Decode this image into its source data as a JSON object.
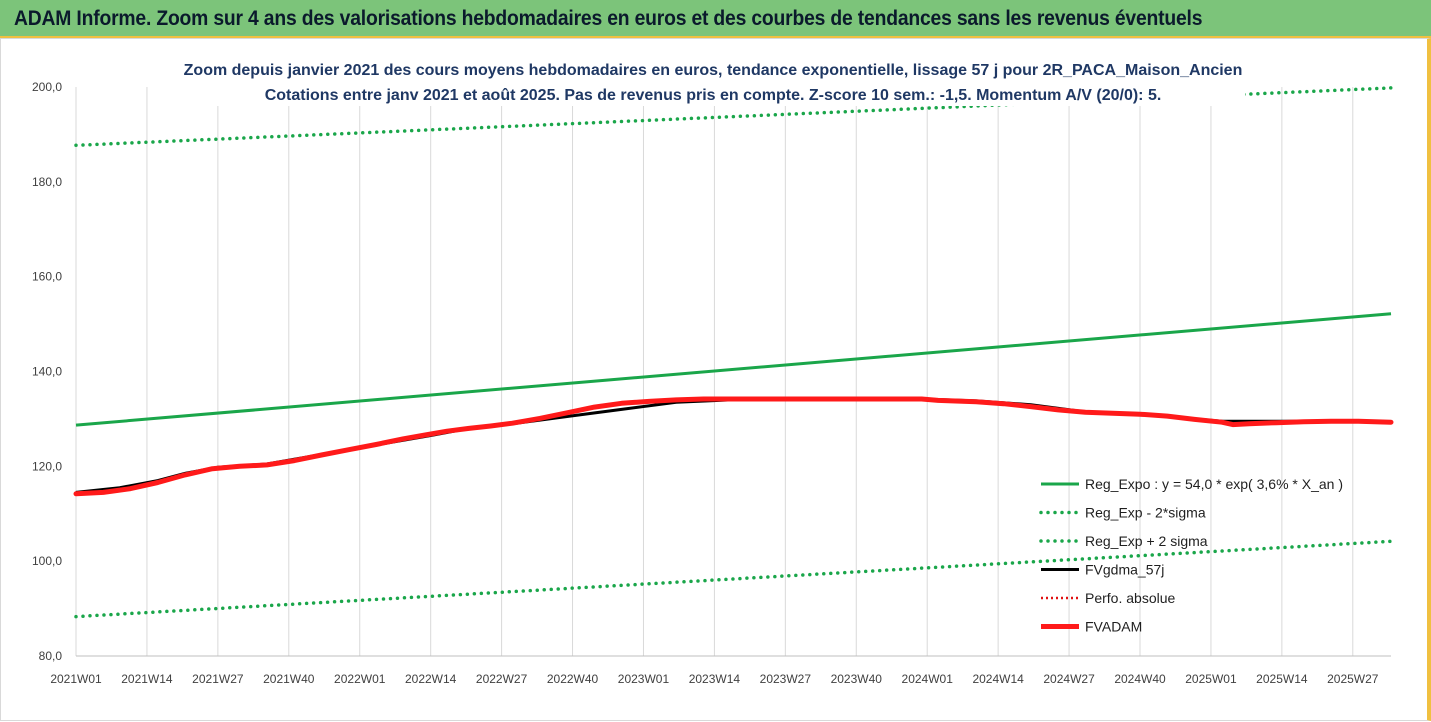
{
  "banner": {
    "text": "ADAM Informe. Zoom sur 4 ans des valorisations hebdomadaires en euros et des courbes de tendances sans les revenus éventuels"
  },
  "colors": {
    "banner_bg": "#7cc47a",
    "trend": "#1aa64a",
    "bands": "#1aa64a",
    "fvgdma": "#000000",
    "perfo": "#e01010",
    "fvadam": "#ff1a1a",
    "accent_border": "#f0c040"
  },
  "chart_data": {
    "type": "line",
    "title": "Zoom depuis janvier 2021 des cours moyens hebdomadaires en euros, tendance exponentielle, lissage 57 j pour 2R_PACA_Maison_Ancien",
    "subtitle": "Cotations entre janv 2021 et août 2025. Pas de revenus pris en compte. Z-score 10 sem.: -1,5. Momentum A/V (20/0): 5.",
    "xlabel": "",
    "ylabel": "",
    "ylim": [
      80,
      200
    ],
    "grid": "vertical",
    "legend_position": "bottom-right",
    "x_ticks": [
      "2021W01",
      "2021W14",
      "2021W27",
      "2021W40",
      "2022W01",
      "2022W14",
      "2022W27",
      "2022W40",
      "2023W01",
      "2023W14",
      "2023W27",
      "2023W40",
      "2024W01",
      "2024W14",
      "2024W27",
      "2024W40",
      "2025W01",
      "2025W14",
      "2025W27"
    ],
    "y_ticks": [
      "80,0",
      "100,0",
      "120,0",
      "140,0",
      "160,0",
      "180,0",
      "200,0"
    ],
    "x_range_weeks": [
      0,
      241
    ],
    "series": [
      {
        "name": "Reg_Expo : y = 54,0 * exp( 3,6% *  X_an )",
        "style": "solid-green",
        "points": [
          [
            0,
            128.7
          ],
          [
            241,
            152.2
          ]
        ]
      },
      {
        "name": "Reg_Exp - 2*sigma",
        "style": "dotted-green",
        "points": [
          [
            0,
            88.3
          ],
          [
            241,
            104.2
          ]
        ]
      },
      {
        "name": "Reg_Exp + 2 sigma",
        "style": "dotted-green",
        "points": [
          [
            0,
            187.7
          ],
          [
            241,
            199.8
          ]
        ]
      },
      {
        "name": "FVgdma_57j",
        "style": "solid-black",
        "points": [
          [
            0,
            114.5
          ],
          [
            8,
            115.5
          ],
          [
            15,
            117
          ],
          [
            20,
            118.5
          ],
          [
            26,
            119.8
          ],
          [
            35,
            120.5
          ],
          [
            45,
            122.5
          ],
          [
            55,
            124.5
          ],
          [
            65,
            126.5
          ],
          [
            72,
            128
          ],
          [
            80,
            129
          ],
          [
            90,
            130.5
          ],
          [
            100,
            132
          ],
          [
            110,
            133.5
          ],
          [
            120,
            134
          ],
          [
            130,
            134.2
          ],
          [
            145,
            134.2
          ],
          [
            155,
            134.2
          ],
          [
            165,
            133.8
          ],
          [
            175,
            133
          ],
          [
            185,
            131.5
          ],
          [
            195,
            131
          ],
          [
            205,
            130
          ],
          [
            210,
            129.5
          ],
          [
            220,
            129.5
          ],
          [
            230,
            129.5
          ],
          [
            241,
            129.3
          ]
        ]
      },
      {
        "name": "Perfo. absolue",
        "style": "dotted-red",
        "points": []
      },
      {
        "name": "FVADAM",
        "style": "solid-red-thick",
        "points": [
          [
            0,
            114.2
          ],
          [
            5,
            114.5
          ],
          [
            10,
            115.3
          ],
          [
            15,
            116.6
          ],
          [
            20,
            118.2
          ],
          [
            25,
            119.5
          ],
          [
            30,
            120
          ],
          [
            35,
            120.3
          ],
          [
            40,
            121.2
          ],
          [
            45,
            122.4
          ],
          [
            50,
            123.5
          ],
          [
            55,
            124.6
          ],
          [
            60,
            125.8
          ],
          [
            64,
            126.6
          ],
          [
            68,
            127.4
          ],
          [
            72,
            128
          ],
          [
            76,
            128.5
          ],
          [
            80,
            129.1
          ],
          [
            85,
            130.1
          ],
          [
            90,
            131.3
          ],
          [
            95,
            132.5
          ],
          [
            100,
            133.3
          ],
          [
            105,
            133.7
          ],
          [
            110,
            134
          ],
          [
            115,
            134.2
          ],
          [
            120,
            134.2
          ],
          [
            130,
            134.2
          ],
          [
            140,
            134.2
          ],
          [
            150,
            134.2
          ],
          [
            155,
            134.2
          ],
          [
            158,
            133.9
          ],
          [
            165,
            133.6
          ],
          [
            170,
            133.2
          ],
          [
            175,
            132.6
          ],
          [
            180,
            131.9
          ],
          [
            185,
            131.4
          ],
          [
            190,
            131.2
          ],
          [
            195,
            131
          ],
          [
            200,
            130.6
          ],
          [
            205,
            129.9
          ],
          [
            210,
            129.3
          ],
          [
            212,
            128.8
          ],
          [
            215,
            129
          ],
          [
            220,
            129.2
          ],
          [
            225,
            129.4
          ],
          [
            230,
            129.5
          ],
          [
            235,
            129.5
          ],
          [
            241,
            129.3
          ]
        ]
      }
    ]
  }
}
